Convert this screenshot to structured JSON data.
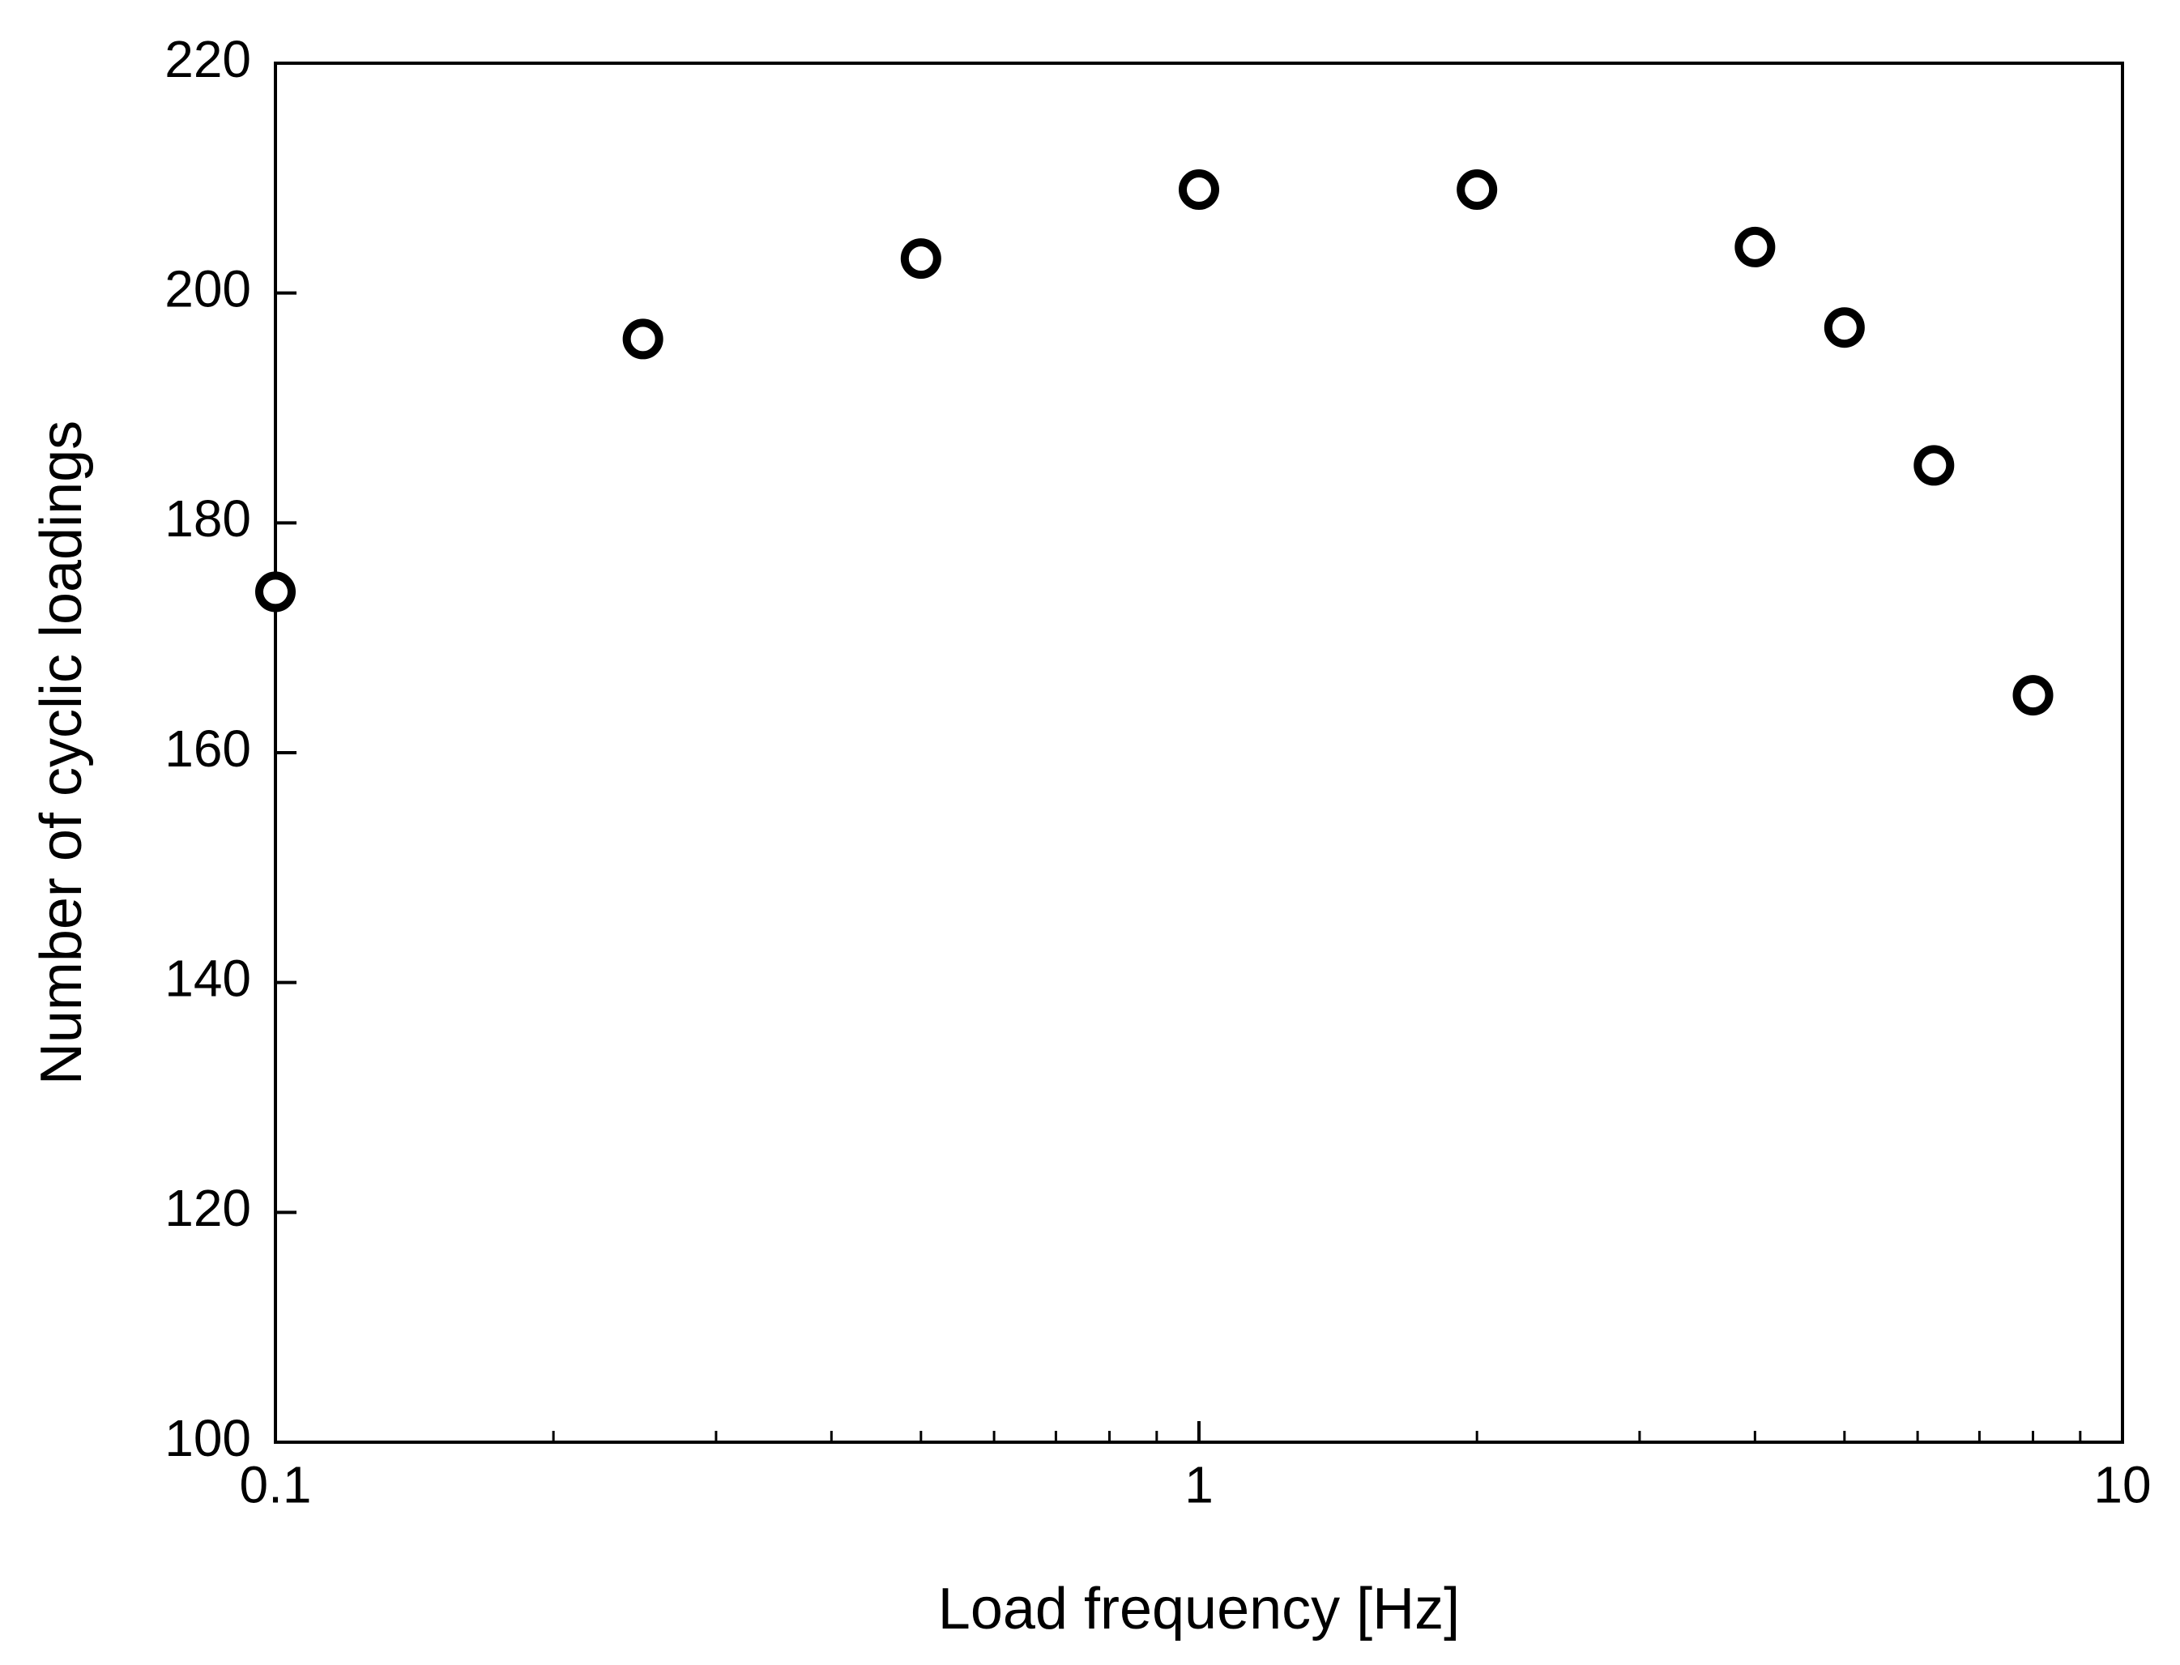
{
  "chart_data": {
    "type": "scatter",
    "title": "",
    "xlabel": "Load frequency [Hz]",
    "ylabel": "Number of cyclic loadings",
    "xscale": "log",
    "xlim": [
      0.1,
      10
    ],
    "ylim": [
      100,
      220
    ],
    "xticks": [
      0.1,
      1,
      10
    ],
    "xtick_labels": [
      "0.1",
      "1",
      "10"
    ],
    "yticks": [
      100,
      120,
      140,
      160,
      180,
      200,
      220
    ],
    "ytick_labels": [
      "100",
      "120",
      "140",
      "160",
      "180",
      "200",
      "220"
    ],
    "grid": false,
    "legend": "none",
    "marker": "open-circle",
    "marker_color": "#000000",
    "points": [
      {
        "x": 0.1,
        "y": 174
      },
      {
        "x": 0.25,
        "y": 196
      },
      {
        "x": 0.5,
        "y": 203
      },
      {
        "x": 1,
        "y": 209
      },
      {
        "x": 2,
        "y": 209
      },
      {
        "x": 4,
        "y": 204
      },
      {
        "x": 5,
        "y": 197
      },
      {
        "x": 6.25,
        "y": 185
      },
      {
        "x": 8,
        "y": 165
      }
    ]
  }
}
